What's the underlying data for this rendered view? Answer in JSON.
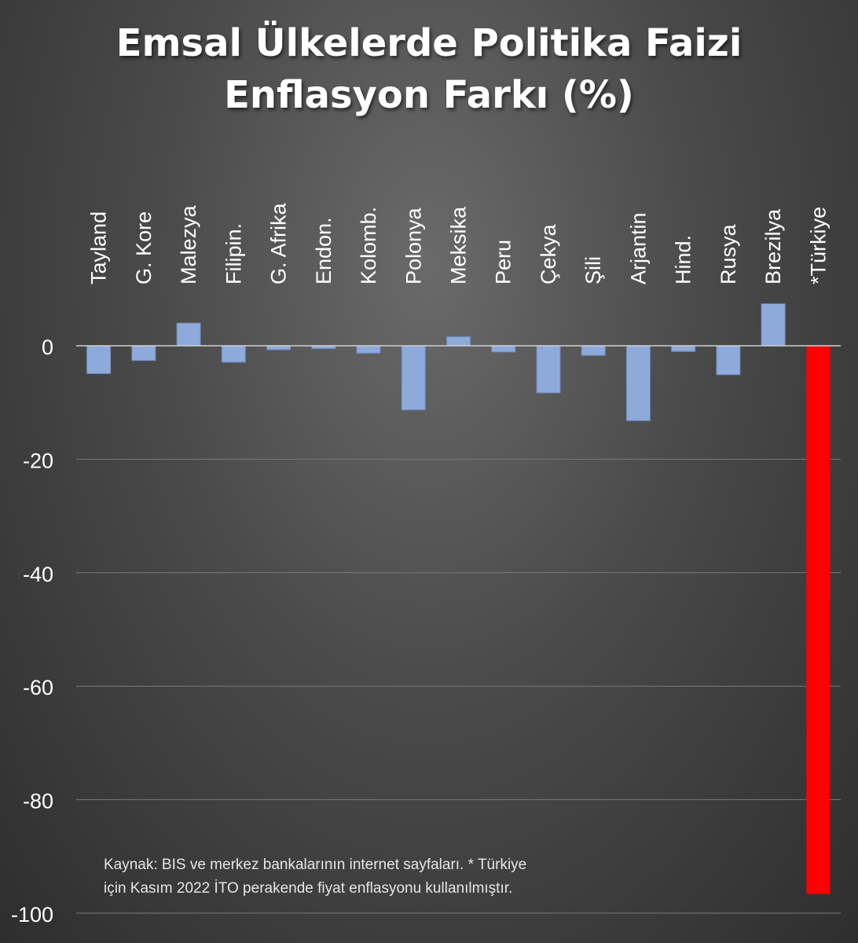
{
  "title_lines": [
    "Emsal Ülkelerde Politika Faizi",
    "Enflasyon Farkı (%)"
  ],
  "source_lines": [
    "Kaynak: BIS ve merkez bankalarının internet sayfaları. * Türkiye",
    "için Kasım 2022 İTO perakende fiyat enflasyonu kullanılmıştır."
  ],
  "colors": {
    "bar": "#8eaadb",
    "highlight_bar": "#ff0000",
    "grid": "#7a7a7a",
    "axis": "#d0d0d0",
    "text": "#ffffff"
  },
  "chart_data": {
    "type": "bar",
    "title": "Emsal Ülkelerde Politika Faizi Enflasyon Farkı (%)",
    "categories": [
      "Tayland",
      "G. Kore",
      "Malezya",
      "Filipin.",
      "G. Afrika",
      "Endon.",
      "Kolomb.",
      "Polonya",
      "Meksika",
      "Peru",
      "Çekya",
      "Şili",
      "Arjantin",
      "Hind.",
      "Rusya",
      "Brezilya",
      "*Türkiye"
    ],
    "values": [
      -4.9,
      -2.6,
      4.0,
      -2.9,
      -0.7,
      -0.5,
      -1.3,
      -11.3,
      1.6,
      -1.1,
      -8.3,
      -1.7,
      -13.2,
      -1.0,
      -5.1,
      7.4,
      -96.6
    ],
    "highlight_category": "*Türkiye",
    "ylim": [
      -100,
      10
    ],
    "yticks": [
      0,
      -20,
      -40,
      -60,
      -80,
      -100
    ],
    "xlabel": "",
    "ylabel": "",
    "grid": true,
    "legend": "none",
    "category_label_position": "top-rotated"
  }
}
